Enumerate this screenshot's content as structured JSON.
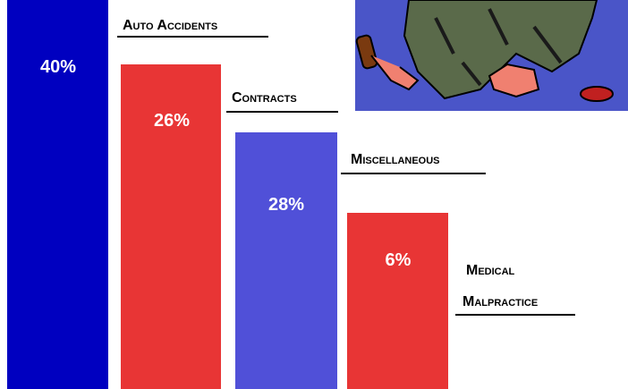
{
  "items": [
    {
      "label_lines": [
        "Auto Accidents"
      ],
      "value": "40%"
    },
    {
      "label_lines": [
        "Contracts"
      ],
      "value": "26%"
    },
    {
      "label_lines": [
        "Miscellaneous"
      ],
      "value": "28%"
    },
    {
      "label_lines": [
        "Medical",
        "Malpractice"
      ],
      "value": "6%"
    }
  ]
}
